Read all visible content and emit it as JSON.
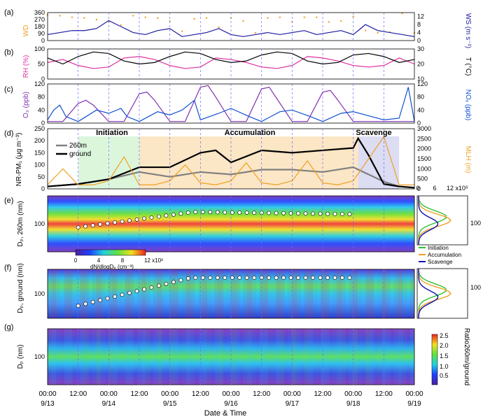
{
  "chart_data": [
    {
      "type": "line",
      "panel_label": "(a)",
      "ylabel": "WD",
      "y2label": "WS (m s⁻¹)",
      "y_ticks": [
        "0",
        "90",
        "180",
        "270",
        "360"
      ],
      "y2_ticks": [
        "0",
        "4",
        "8",
        "12"
      ],
      "ylim": [
        0,
        360
      ],
      "y2lim": [
        0,
        14
      ],
      "colors": {
        "wd": "#f0a020",
        "ws": "#1a1aa0"
      },
      "series": [
        {
          "axis": "left",
          "style": "dots",
          "x": [
            0.0,
            0.2,
            0.4,
            0.6,
            0.8,
            1.0,
            1.2,
            1.4,
            1.6,
            1.8,
            2.0,
            2.2,
            2.4,
            2.6,
            2.8,
            3.0,
            3.2,
            3.4,
            3.6,
            3.8,
            4.0,
            4.2,
            4.4,
            4.6,
            4.8,
            5.0,
            5.2,
            5.4,
            5.6,
            5.8,
            6.0
          ],
          "y": [
            330,
            320,
            300,
            290,
            270,
            240,
            200,
            320,
            300,
            290,
            250,
            120,
            280,
            290,
            170,
            290,
            250,
            100,
            290,
            300,
            240,
            300,
            300,
            240,
            250,
            310,
            130,
            100,
            110,
            350,
            100
          ]
        },
        {
          "axis": "right",
          "style": "line",
          "x": [
            0.0,
            0.2,
            0.4,
            0.6,
            0.8,
            1.0,
            1.2,
            1.4,
            1.6,
            1.8,
            2.0,
            2.2,
            2.4,
            2.6,
            2.8,
            3.0,
            3.2,
            3.4,
            3.6,
            3.8,
            4.0,
            4.2,
            4.4,
            4.6,
            4.8,
            5.0,
            5.2,
            5.4,
            5.6,
            5.8,
            6.0
          ],
          "y": [
            3,
            4,
            5,
            5,
            6,
            10,
            7,
            4,
            3,
            5,
            6,
            2,
            3,
            4,
            6,
            3,
            2,
            3,
            4,
            3,
            4,
            5,
            3,
            4,
            5,
            3,
            8,
            5,
            4,
            3,
            2
          ]
        }
      ]
    },
    {
      "type": "line",
      "panel_label": "(b)",
      "ylabel": "RH (%)",
      "y2label": "T (°C)",
      "y_ticks": [
        "0",
        "50",
        "100"
      ],
      "y2_ticks": [
        "10",
        "20",
        "30"
      ],
      "ylim": [
        0,
        100
      ],
      "y2lim": [
        10,
        30
      ],
      "colors": {
        "rh": "#e030a0",
        "t": "#000000",
        "t260": "#666666"
      },
      "series": [
        {
          "axis": "left",
          "style": "line",
          "x": [
            0.0,
            0.25,
            0.5,
            0.75,
            1.0,
            1.25,
            1.5,
            1.75,
            2.0,
            2.25,
            2.5,
            2.75,
            3.0,
            3.25,
            3.5,
            3.75,
            4.0,
            4.25,
            4.5,
            4.75,
            5.0,
            5.25,
            5.5,
            5.75,
            6.0
          ],
          "y": [
            55,
            65,
            45,
            35,
            40,
            70,
            75,
            65,
            45,
            35,
            40,
            70,
            65,
            55,
            40,
            35,
            45,
            75,
            70,
            60,
            45,
            40,
            45,
            70,
            50
          ]
        },
        {
          "axis": "right",
          "style": "line",
          "x": [
            0.0,
            0.25,
            0.5,
            0.75,
            1.0,
            1.25,
            1.5,
            1.75,
            2.0,
            2.25,
            2.5,
            2.75,
            3.0,
            3.25,
            3.5,
            3.75,
            4.0,
            4.25,
            4.5,
            4.75,
            5.0,
            5.25,
            5.5,
            5.75,
            6.0
          ],
          "y": [
            24,
            20,
            25,
            28,
            27,
            22,
            20,
            21,
            25,
            28,
            27,
            23,
            21,
            22,
            26,
            28,
            27,
            22,
            20,
            21,
            26,
            27,
            25,
            21,
            23
          ]
        }
      ]
    },
    {
      "type": "line",
      "panel_label": "(c)",
      "ylabel": "O₃ (ppb)",
      "y2label": "NOₓ (ppb)",
      "y_ticks": [
        "0",
        "40",
        "80",
        "120"
      ],
      "y2_ticks": [
        "0",
        "40",
        "80",
        "120"
      ],
      "ylim": [
        0,
        120
      ],
      "y2lim": [
        0,
        120
      ],
      "colors": {
        "o3": "#8030b0",
        "nox": "#1050d0"
      },
      "series": [
        {
          "axis": "left",
          "style": "line",
          "x": [
            0.0,
            0.25,
            0.5,
            0.625,
            0.75,
            1.0,
            1.25,
            1.5,
            1.625,
            1.75,
            2.0,
            2.25,
            2.5,
            2.625,
            2.75,
            3.0,
            3.25,
            3.5,
            3.625,
            3.75,
            4.0,
            4.25,
            4.5,
            4.625,
            4.75,
            5.0,
            5.25,
            5.5,
            5.75,
            6.0
          ],
          "y": [
            5,
            5,
            60,
            70,
            55,
            5,
            5,
            90,
            95,
            70,
            5,
            5,
            110,
            115,
            80,
            5,
            5,
            105,
            110,
            75,
            5,
            5,
            95,
            100,
            70,
            5,
            5,
            5,
            5,
            5
          ]
        },
        {
          "axis": "right",
          "style": "line",
          "x": [
            0.0,
            0.1,
            0.2,
            0.3,
            0.5,
            0.8,
            1.0,
            1.2,
            1.3,
            1.5,
            1.8,
            2.0,
            2.2,
            2.4,
            2.5,
            2.8,
            3.0,
            3.3,
            3.5,
            3.8,
            4.0,
            4.3,
            4.5,
            4.8,
            5.0,
            5.3,
            5.5,
            5.75,
            5.9,
            6.0
          ],
          "y": [
            10,
            40,
            55,
            20,
            5,
            40,
            30,
            45,
            20,
            5,
            35,
            25,
            40,
            70,
            10,
            30,
            45,
            20,
            5,
            35,
            40,
            20,
            5,
            30,
            35,
            20,
            10,
            15,
            110,
            5
          ]
        }
      ]
    },
    {
      "type": "line",
      "panel_label": "(d)",
      "ylabel": "NR-PM₁ (μg m⁻³)",
      "y2label": "MLH (m)",
      "y_ticks": [
        "0",
        "50",
        "100",
        "150",
        "200",
        "250"
      ],
      "y2_ticks": [
        "0",
        "500",
        "1000",
        "1500",
        "2000",
        "2500",
        "3000"
      ],
      "ylim": [
        0,
        250
      ],
      "y2lim": [
        0,
        3000
      ],
      "period_labels": [
        "Initiation",
        "Accumulation",
        "Scavenge"
      ],
      "period_spans": [
        [
          0.5,
          1.5
        ],
        [
          1.5,
          5.08
        ],
        [
          5.08,
          5.75
        ]
      ],
      "period_colors": [
        "#d8f5d8",
        "#fbe3bf",
        "#d8d8f2"
      ],
      "legend": [
        "260m",
        "ground"
      ],
      "colors": {
        "260m": "#808080",
        "ground": "#000000",
        "mlh": "#f0a020"
      },
      "series": [
        {
          "name": "260m",
          "axis": "left",
          "style": "line",
          "x": [
            0.0,
            0.5,
            1.0,
            1.5,
            2.0,
            2.5,
            3.0,
            3.5,
            4.0,
            4.5,
            5.0,
            5.25,
            5.5,
            5.75,
            6.0
          ],
          "y": [
            10,
            20,
            40,
            70,
            50,
            70,
            60,
            80,
            80,
            70,
            90,
            60,
            30,
            10,
            5
          ]
        },
        {
          "name": "ground",
          "axis": "left",
          "style": "line",
          "x": [
            0.0,
            0.5,
            1.0,
            1.5,
            2.0,
            2.5,
            2.75,
            3.0,
            3.5,
            4.0,
            4.5,
            5.0,
            5.08,
            5.25,
            5.5,
            5.75,
            6.0
          ],
          "y": [
            10,
            20,
            40,
            90,
            90,
            150,
            160,
            110,
            160,
            150,
            160,
            170,
            210,
            140,
            20,
            10,
            5
          ]
        },
        {
          "name": "MLH",
          "axis": "right",
          "style": "line",
          "x": [
            0.0,
            0.25,
            0.5,
            0.75,
            1.0,
            1.25,
            1.5,
            1.75,
            2.0,
            2.25,
            2.5,
            2.75,
            3.0,
            3.25,
            3.5,
            3.75,
            4.0,
            4.25,
            4.5,
            4.75,
            5.0,
            5.25,
            5.5,
            5.75,
            6.0
          ],
          "y": [
            200,
            1000,
            200,
            200,
            400,
            1600,
            200,
            200,
            400,
            1200,
            300,
            200,
            400,
            1300,
            300,
            200,
            400,
            1400,
            300,
            200,
            400,
            1500,
            2600,
            200,
            200
          ]
        }
      ]
    },
    {
      "type": "heatmap",
      "panel_label": "(e)",
      "ylabel": "Dₚ, 260m (nm)",
      "y_ticks": [
        "100"
      ],
      "colorbar_ticks": [
        "0",
        "4",
        "8",
        "12 x10³"
      ],
      "colorbar_label": "dN/dlogDₚ (cm⁻³)",
      "profile_panel": {
        "x_ticks": [
          "0",
          "6",
          "12 x10³"
        ],
        "legend": [
          "Initiation",
          "Accumulation",
          "Scavenge"
        ],
        "colors": [
          "#30c030",
          "#f0a020",
          "#1010b0"
        ]
      }
    },
    {
      "type": "heatmap",
      "panel_label": "(f)",
      "ylabel": "Dₚ, ground (nm)",
      "y_ticks": [
        "100"
      ]
    },
    {
      "type": "heatmap",
      "panel_label": "(g)",
      "ylabel": "Dₚ (nm)",
      "y_ticks": [
        "100"
      ],
      "colorbar_ticks": [
        "0.5",
        "1.0",
        "1.5",
        "2.0",
        "2.5"
      ],
      "colorbar_label": "Ratio260m/ground"
    }
  ],
  "x_axis": {
    "label": "Date & Time",
    "time_ticks": [
      "00:00",
      "12:00",
      "00:00",
      "12:00",
      "00:00",
      "12:00",
      "00:00",
      "12:00",
      "00:00",
      "12:00",
      "00:00",
      "12:00",
      "00:00"
    ],
    "date_ticks": [
      "9/13",
      "9/14",
      "9/15",
      "9/16",
      "9/17",
      "9/18",
      "9/19"
    ],
    "range_days": [
      0,
      6
    ]
  }
}
